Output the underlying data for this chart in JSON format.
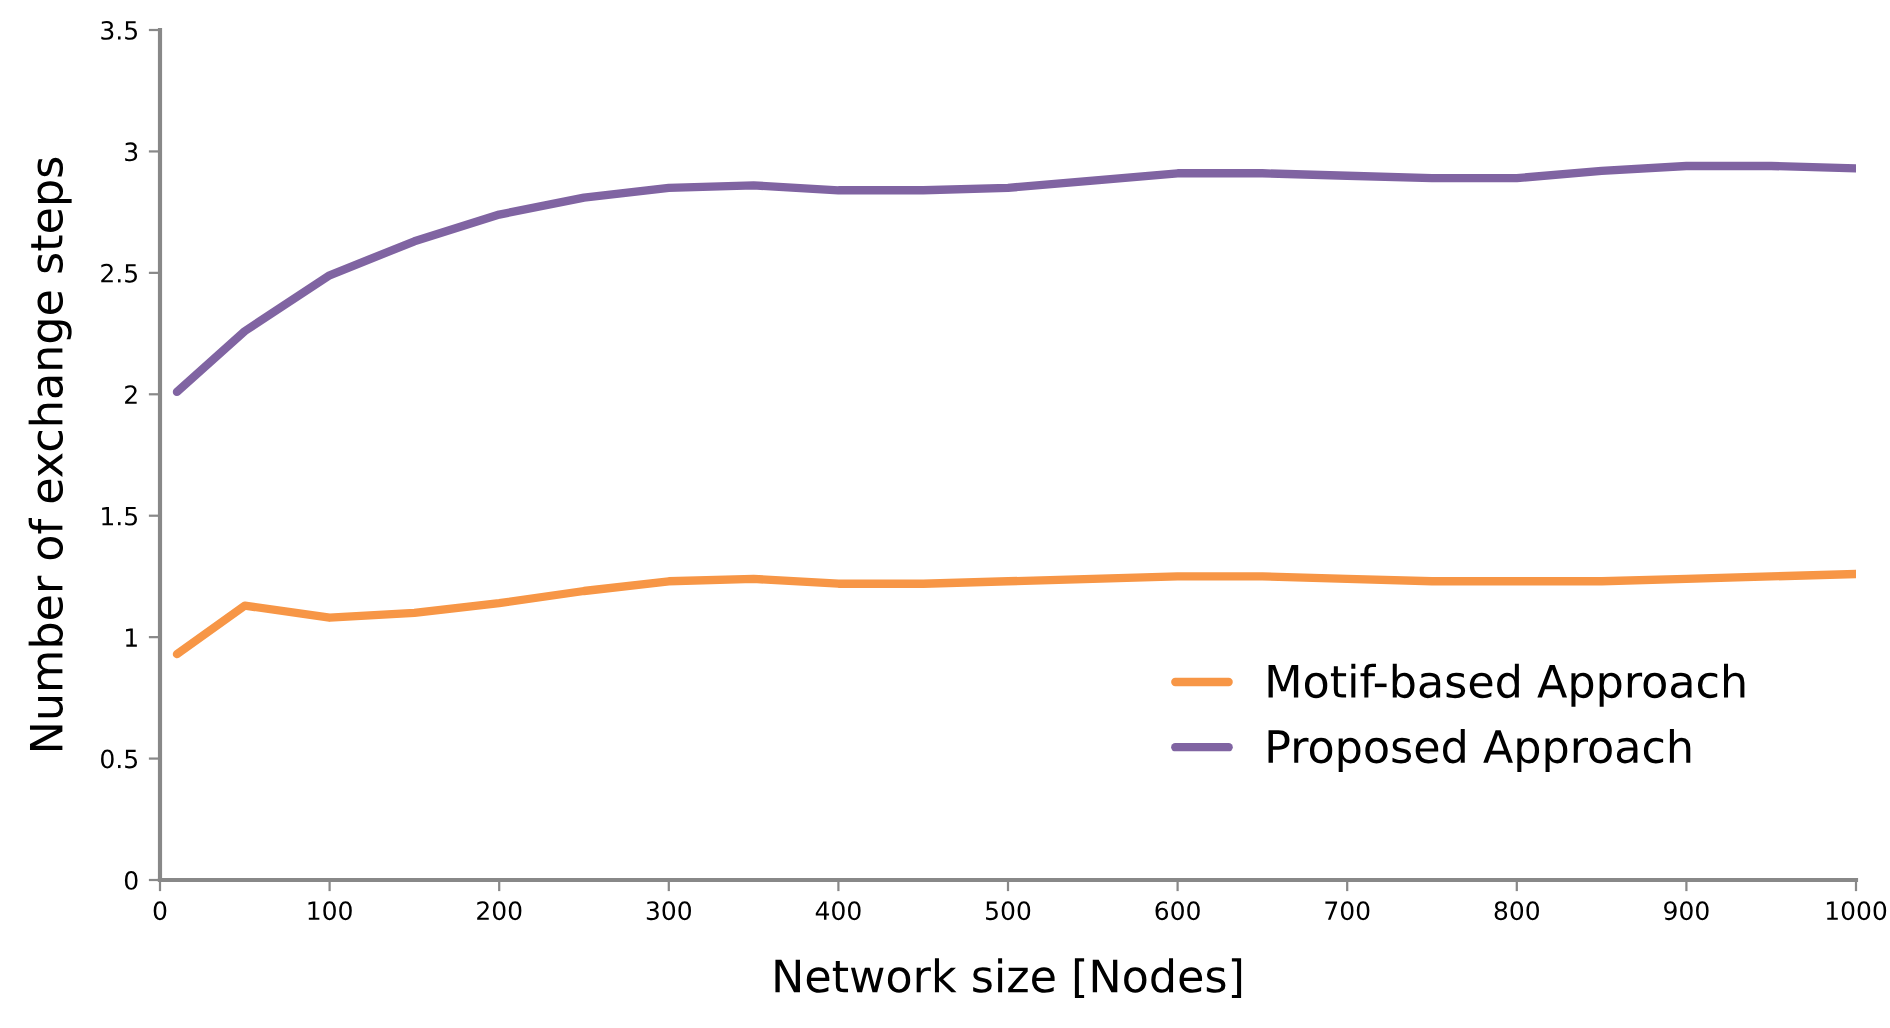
{
  "chart_data": {
    "type": "line",
    "xlabel": "Network size [Nodes]",
    "ylabel": "Number of exchange steps",
    "x": [
      10,
      50,
      100,
      150,
      200,
      250,
      300,
      350,
      400,
      450,
      500,
      550,
      600,
      650,
      700,
      750,
      800,
      850,
      900,
      950,
      1000
    ],
    "series": [
      {
        "name": "Motif-based Approach",
        "color": "#f79646",
        "values": [
          0.93,
          1.13,
          1.08,
          1.1,
          1.14,
          1.19,
          1.23,
          1.24,
          1.22,
          1.22,
          1.23,
          1.24,
          1.25,
          1.25,
          1.24,
          1.23,
          1.23,
          1.23,
          1.24,
          1.25,
          1.26
        ]
      },
      {
        "name": "Proposed Approach",
        "color": "#8064a2",
        "values": [
          2.01,
          2.26,
          2.49,
          2.63,
          2.74,
          2.81,
          2.85,
          2.86,
          2.84,
          2.84,
          2.85,
          2.88,
          2.91,
          2.91,
          2.9,
          2.89,
          2.89,
          2.92,
          2.94,
          2.94,
          2.93
        ]
      }
    ],
    "xlim": [
      0,
      1000
    ],
    "xticks": [
      0,
      100,
      200,
      300,
      400,
      500,
      600,
      700,
      800,
      900,
      1000
    ],
    "ylim": [
      0,
      3.5
    ],
    "yticks": [
      0,
      0.5,
      1,
      1.5,
      2,
      2.5,
      3,
      3.5
    ],
    "grid": false,
    "legend": "bottom right",
    "marker": "none",
    "line_style": "solid"
  }
}
